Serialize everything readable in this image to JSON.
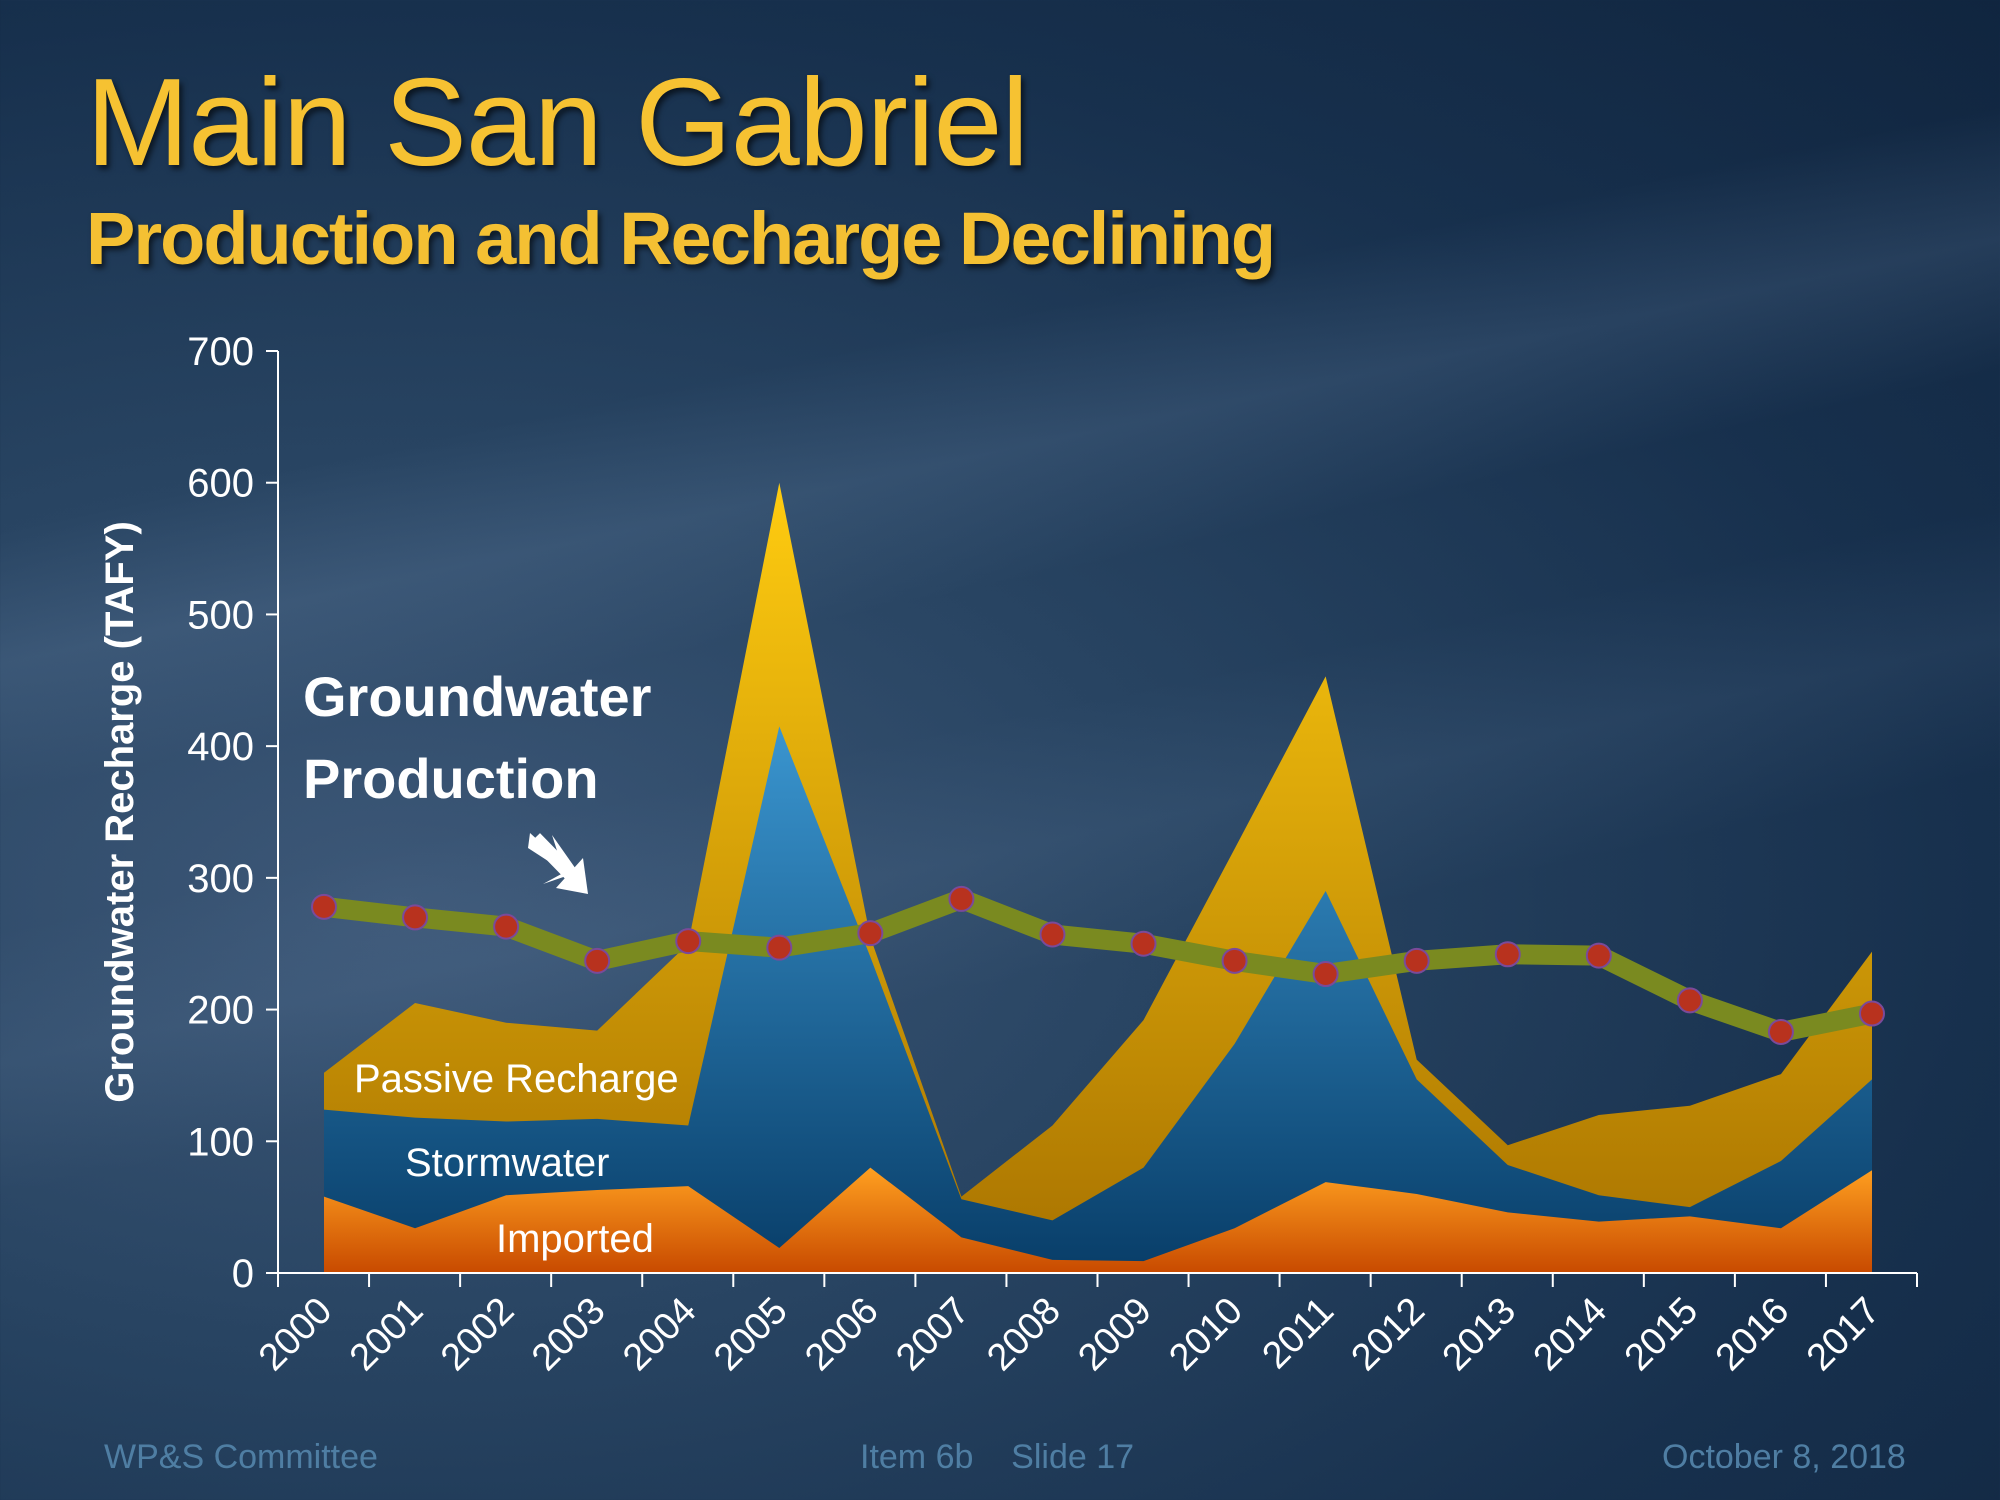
{
  "title": "Main San Gabriel",
  "subtitle": "Production and Recharge Declining",
  "footer": {
    "left": "WP&S Committee",
    "center": "Item 6b    Slide 17",
    "right": "October 8, 2018"
  },
  "annotation": "Groundwater Production",
  "annotation_lines": [
    "Groundwater",
    "Production"
  ],
  "chart_data": {
    "type": "area",
    "stacked": true,
    "ylabel": "Groundwater Recharge (TAFY)",
    "xlabel": "",
    "ylim": [
      0,
      700
    ],
    "yticks": [
      0,
      100,
      200,
      300,
      400,
      500,
      600,
      700
    ],
    "categories": [
      "2000",
      "2001",
      "2002",
      "2003",
      "2004",
      "2005",
      "2006",
      "2007",
      "2008",
      "2009",
      "2010",
      "2011",
      "2012",
      "2013",
      "2014",
      "2015",
      "2016",
      "2017"
    ],
    "series": [
      {
        "name": "Imported",
        "color": "#f07a10",
        "values": [
          58,
          34,
          59,
          63,
          66,
          19,
          80,
          27,
          10,
          9,
          34,
          69,
          60,
          46,
          39,
          43,
          34,
          78
        ]
      },
      {
        "name": "Stormwater",
        "color": "#1a6aa0",
        "values": [
          66,
          84,
          56,
          54,
          46,
          396,
          160,
          29,
          30,
          71,
          140,
          221,
          87,
          36,
          20,
          7,
          51,
          69
        ]
      },
      {
        "name": "Passive Recharge",
        "color": "#e8a600",
        "values": [
          28,
          87,
          75,
          67,
          138,
          185,
          15,
          2,
          72,
          112,
          148,
          163,
          15,
          15,
          61,
          77,
          66,
          97
        ]
      }
    ],
    "line_series": {
      "name": "Groundwater Production",
      "color": "#7a8a20",
      "marker_color": "#b8321e",
      "values": [
        278,
        270,
        263,
        237,
        252,
        247,
        258,
        284,
        257,
        250,
        237,
        227,
        237,
        242,
        241,
        207,
        183,
        197
      ]
    }
  }
}
